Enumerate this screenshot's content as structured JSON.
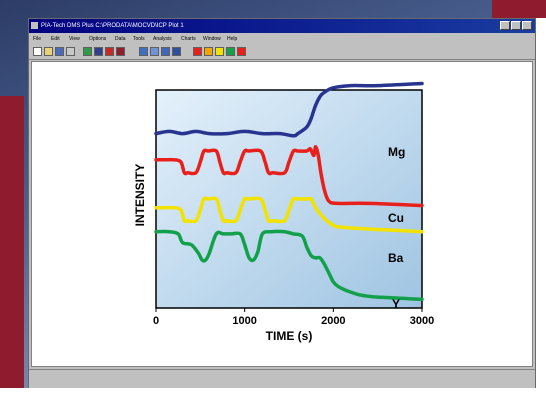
{
  "window": {
    "title": "PIA-Tech DMS Plus   C:\\PRODATA\\MOCVD\\ICP Plot 1",
    "menu": [
      "File",
      "Edit",
      "View",
      "Options",
      "Data",
      "Tools",
      "Analysis",
      "Charts",
      "Window",
      "Help"
    ]
  },
  "toolbar": {
    "icons": [
      "new-icon",
      "open-icon",
      "save-icon",
      "print-icon",
      "cut-icon",
      "copy-icon",
      "paste-icon",
      "undo-icon",
      "chart-icon",
      "zoom-icon",
      "color-red-icon",
      "color-yellow-icon",
      "color-green-icon",
      "color-red2-icon"
    ]
  },
  "colors": {
    "plot_top": "#e4f1fb",
    "plot_bottom": "#9fc4e2",
    "mg": "#27358f",
    "cu": "#e8201c",
    "ba": "#f2e200",
    "y": "#12a04a"
  },
  "chart_data": {
    "type": "line",
    "title": "",
    "xlabel": "TIME (s)",
    "ylabel": "INTENSITY",
    "xlim": [
      0,
      3000
    ],
    "ylim": [
      0,
      100
    ],
    "xticks": [
      0,
      1000,
      2000,
      3000
    ],
    "yticks_shown": false,
    "grid": false,
    "legend": "labels at right end of each series",
    "series": [
      {
        "name": "Mg",
        "x": [
          0,
          150,
          300,
          450,
          600,
          800,
          1000,
          1200,
          1400,
          1550,
          1600,
          1700,
          1750,
          1800,
          1850,
          1900,
          2000,
          2200,
          2500,
          3000
        ],
        "y": [
          80,
          81,
          80,
          81,
          80,
          80,
          81,
          80,
          80,
          79,
          80,
          83,
          87,
          93,
          97,
          99,
          101,
          102,
          102,
          103
        ]
      },
      {
        "name": "Cu",
        "x": [
          0,
          100,
          200,
          280,
          320,
          360,
          450,
          500,
          540,
          590,
          680,
          720,
          760,
          800,
          900,
          950,
          1000,
          1050,
          1180,
          1230,
          1270,
          1320,
          1450,
          1500,
          1550,
          1600,
          1700,
          1740,
          1780,
          1800,
          1830,
          1860,
          1900,
          1950,
          2050,
          2400,
          3000
        ],
        "y": [
          68,
          68,
          68,
          67,
          62,
          62,
          62,
          67,
          72,
          72,
          72,
          67,
          62,
          62,
          62,
          67,
          72,
          72,
          72,
          67,
          62,
          62,
          62,
          67,
          72,
          72,
          72,
          73,
          70,
          74,
          70,
          62,
          54,
          49,
          48,
          48,
          47
        ]
      },
      {
        "name": "Ba",
        "x": [
          0,
          100,
          200,
          280,
          320,
          360,
          450,
          500,
          540,
          590,
          680,
          720,
          760,
          800,
          900,
          950,
          1000,
          1050,
          1180,
          1230,
          1270,
          1320,
          1450,
          1500,
          1550,
          1600,
          1700,
          1750,
          1800,
          1900,
          2000,
          2100,
          2500,
          3000
        ],
        "y": [
          46,
          46,
          46,
          45,
          40,
          40,
          40,
          45,
          50,
          50,
          50,
          45,
          40,
          40,
          40,
          45,
          50,
          50,
          50,
          45,
          40,
          40,
          40,
          45,
          50,
          50,
          50,
          50,
          46,
          41,
          38,
          37,
          36,
          35
        ]
      },
      {
        "name": "Y",
        "x": [
          0,
          150,
          250,
          300,
          400,
          480,
          520,
          560,
          600,
          680,
          760,
          850,
          950,
          1000,
          1050,
          1100,
          1150,
          1200,
          1300,
          1450,
          1550,
          1650,
          1700,
          1750,
          1800,
          1850,
          1900,
          1950,
          2000,
          2050,
          2150,
          2300,
          2500,
          3000
        ],
        "y": [
          35,
          35,
          34,
          30,
          29,
          25,
          22,
          22,
          25,
          34,
          34,
          34,
          34,
          29,
          23,
          22,
          26,
          34,
          35,
          35,
          34,
          33,
          28,
          24,
          23,
          23,
          20,
          16,
          12,
          10,
          8,
          6,
          5,
          4
        ]
      }
    ]
  }
}
